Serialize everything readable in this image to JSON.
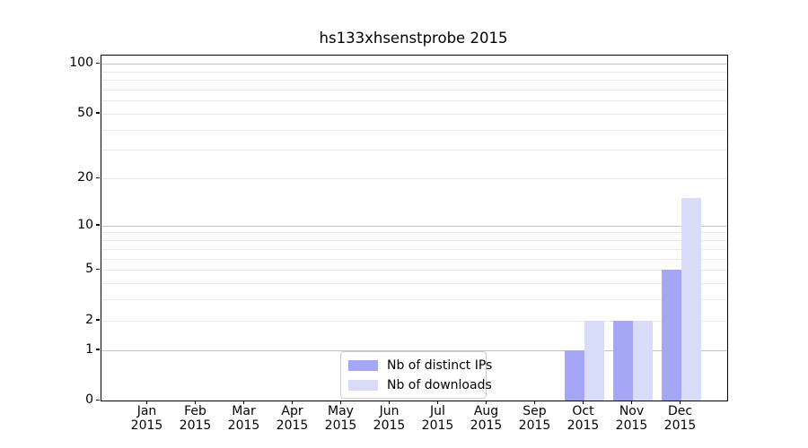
{
  "title": "hs133xhsenstprobe 2015",
  "colors": {
    "bar_distinct_ips": "#a6a6f7",
    "bar_downloads": "#dadaf9",
    "axis": "#000000",
    "grid_minor": "#ebebeb",
    "grid_major": "#c4c4c4",
    "legend_border": "#cccccc",
    "background": "#ffffff"
  },
  "legend": {
    "items": [
      {
        "label": "Nb of distinct IPs",
        "color_key": "bar_distinct_ips"
      },
      {
        "label": "Nb of downloads",
        "color_key": "bar_downloads"
      }
    ]
  },
  "chart_data": {
    "type": "bar",
    "title": "hs133xhsenstprobe 2015",
    "categories": [
      "Jan 2015",
      "Feb 2015",
      "Mar 2015",
      "Apr 2015",
      "May 2015",
      "Jun 2015",
      "Jul 2015",
      "Aug 2015",
      "Sep 2015",
      "Oct 2015",
      "Nov 2015",
      "Dec 2015"
    ],
    "series": [
      {
        "name": "Nb of distinct IPs",
        "key": "bar_distinct_ips",
        "values": [
          0,
          0,
          0,
          0,
          0,
          0,
          0,
          0,
          0,
          1,
          2,
          5
        ]
      },
      {
        "name": "Nb of downloads",
        "key": "bar_downloads",
        "values": [
          0,
          0,
          0,
          0,
          0,
          0,
          0,
          0,
          0,
          2,
          2,
          15
        ]
      }
    ],
    "xlabel": "",
    "ylabel": "",
    "y_scale": "log1p",
    "ylim": [
      0,
      112
    ],
    "y_tick_values": [
      0,
      1,
      2,
      5,
      10,
      20,
      50,
      100
    ],
    "grid_minor_values": [
      2,
      3,
      4,
      5,
      6,
      7,
      8,
      9,
      20,
      30,
      40,
      50,
      60,
      70,
      80,
      90
    ],
    "grid_major_values": [
      1,
      10,
      100
    ],
    "grid": true,
    "legend_position": "inside-bottom-center"
  }
}
